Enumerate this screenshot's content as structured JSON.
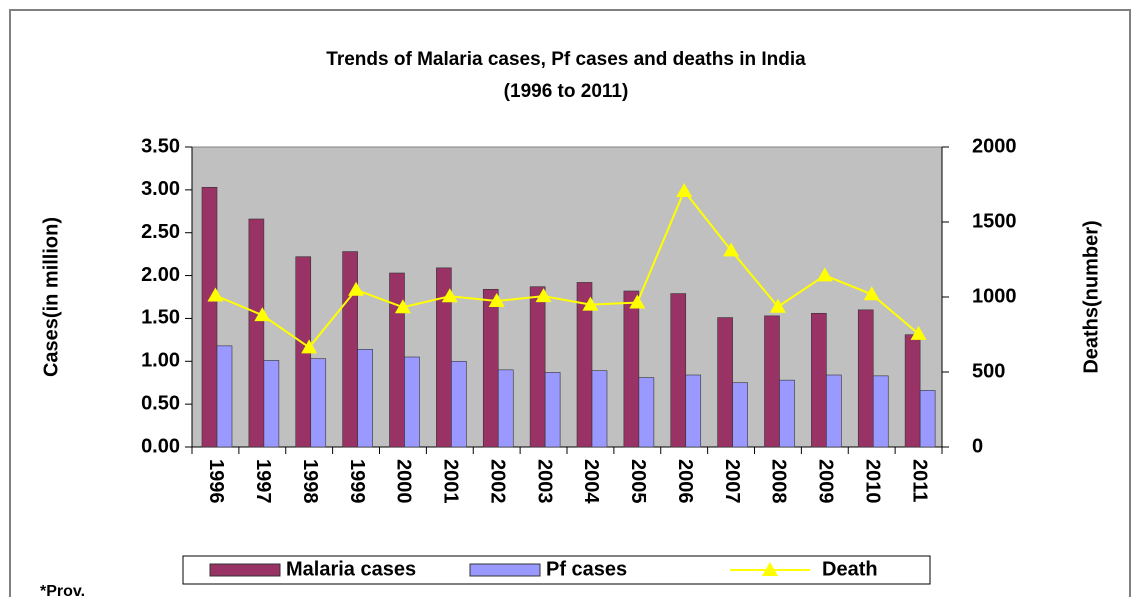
{
  "chart_data": {
    "type": "bar_line",
    "title": "Trends of Malaria cases, Pf cases and deaths in India",
    "subtitle": "(1996 to 2011)",
    "y_label": "Cases(in million)",
    "y2_label": "Deaths(number)",
    "categories": [
      "1996",
      "1997",
      "1998",
      "1999",
      "2000",
      "2001",
      "2002",
      "2003",
      "2004",
      "2005",
      "2006",
      "2007",
      "2008",
      "2009",
      "2010",
      "2011"
    ],
    "series": [
      {
        "name": "Malaria cases",
        "type": "bar",
        "color": "#993366",
        "values": [
          3.03,
          2.66,
          2.22,
          2.28,
          2.03,
          2.09,
          1.84,
          1.87,
          1.92,
          1.82,
          1.79,
          1.51,
          1.53,
          1.56,
          1.6,
          1.31
        ]
      },
      {
        "name": "Pf cases",
        "type": "bar",
        "color": "#9999ff",
        "values": [
          1.18,
          1.01,
          1.03,
          1.14,
          1.05,
          1.0,
          0.9,
          0.87,
          0.89,
          0.81,
          0.84,
          0.75,
          0.78,
          0.84,
          0.83,
          0.66
        ]
      },
      {
        "name": "Death",
        "type": "line",
        "axis": "y2",
        "color": "#ffff00",
        "values": [
          1010,
          879,
          664,
          1048,
          932,
          1005,
          973,
          1006,
          949,
          963,
          1707,
          1311,
          935,
          1144,
          1018,
          754
        ]
      }
    ],
    "ylim": [
      0,
      3.5
    ],
    "yticks": [
      {
        "value": 0,
        "label": "0.00"
      },
      {
        "value": 0.5,
        "label": "0.50"
      },
      {
        "value": 1,
        "label": "1.00"
      },
      {
        "value": 1.5,
        "label": "1.50"
      },
      {
        "value": 2,
        "label": "2.00"
      },
      {
        "value": 2.5,
        "label": "2.50"
      },
      {
        "value": 3,
        "label": "3.00"
      },
      {
        "value": 3.5,
        "label": "3.50"
      }
    ],
    "y2lim": [
      0,
      2000
    ],
    "y2ticks": [
      0,
      500,
      1000,
      1500,
      2000
    ],
    "legend": "bottom",
    "plot_background": "#c0c0c0",
    "footnote": "*Prov."
  }
}
